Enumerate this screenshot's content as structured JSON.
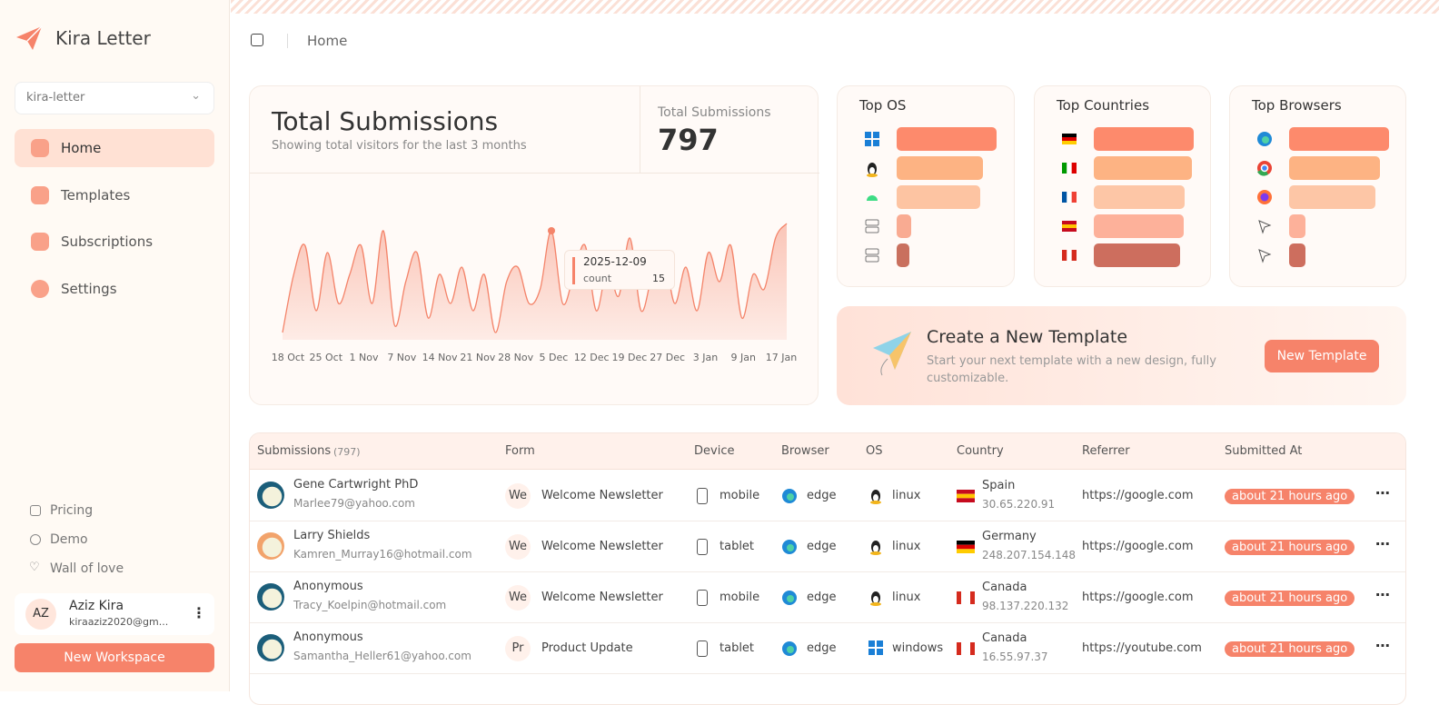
{
  "sidebar": {
    "brand": "Kira Letter",
    "workspace": "kira-letter",
    "nav": [
      "Home",
      "Templates",
      "Subscriptions",
      "Settings"
    ],
    "links": [
      "Pricing",
      "Demo",
      "Wall of love"
    ],
    "user": {
      "initials": "AZ",
      "name": "Aziz Kira",
      "email": "kiraaziz2020@gm..."
    },
    "button": "New Workspace"
  },
  "header": {
    "breadcrumb": "Home"
  },
  "submissions_chart": {
    "type": "area",
    "title": "Total Submissions",
    "subtitle": "Showing total visitors for the last 3 months",
    "total_label": "Total Submissions",
    "total": 797,
    "color": "#f4846a",
    "x_labels": [
      "18 Oct",
      "25 Oct",
      "1 Nov",
      "7 Nov",
      "14 Nov",
      "21 Nov",
      "28 Nov",
      "5 Dec",
      "12 Dec",
      "19 Dec",
      "27 Dec",
      "3 Jan",
      "9 Jan",
      "17 Jan"
    ],
    "values": [
      1,
      9,
      13,
      4,
      12,
      5,
      9,
      13,
      5,
      15,
      2,
      8,
      12,
      3,
      9,
      5,
      10,
      4,
      9,
      1,
      8,
      10,
      5,
      7,
      15,
      5,
      9,
      13,
      4,
      10,
      6,
      14,
      4,
      9,
      12,
      5,
      10,
      4,
      12,
      8,
      13,
      3,
      9,
      7,
      14,
      16
    ],
    "tooltip": {
      "date": "2025-12-09",
      "label": "count"
    }
  },
  "top_os": {
    "title": "Top OS",
    "values": [
      110,
      95,
      92,
      16,
      14
    ],
    "colors": [
      "#fd8a6c",
      "#fdb383",
      "#fdc4a2",
      "#f9ab92",
      "#c9705e"
    ]
  },
  "top_countries": {
    "title": "Top Countries",
    "values": [
      102,
      100,
      93,
      92,
      88
    ],
    "colors": [
      "#fd8a6c",
      "#fdb383",
      "#fdc6a6",
      "#fdb19a",
      "#cd6e5e"
    ]
  },
  "top_browsers": {
    "title": "Top Browsers",
    "values": [
      112,
      102,
      97,
      18,
      18
    ],
    "colors": [
      "#fd8a6c",
      "#fdb383",
      "#fdc6a6",
      "#fdb19a",
      "#cd6e5e"
    ]
  },
  "promo": {
    "title": "Create a New Template",
    "text": "Start your next template with a new design, fully customizable.",
    "button": "New Template"
  },
  "table": {
    "columns": [
      "Submissions",
      "Form",
      "Device",
      "Browser",
      "OS",
      "Country",
      "Referrer",
      "Submitted At"
    ],
    "count": "(797)",
    "rows": [
      [
        "Gene Cartwright PhD",
        "Marlee79@yahoo.com",
        "We",
        "Welcome Newsletter",
        "mobile",
        "edge",
        "linux",
        "Spain",
        "30.65.220.91",
        "https://google.com",
        "about 21 hours ago"
      ],
      [
        "Larry Shields",
        "Kamren_Murray16@hotmail.com",
        "We",
        "Welcome Newsletter",
        "tablet",
        "edge",
        "linux",
        "Germany",
        "248.207.154.148",
        "https://google.com",
        "about 21 hours ago"
      ],
      [
        "Anonymous",
        "Tracy_Koelpin@hotmail.com",
        "We",
        "Welcome Newsletter",
        "mobile",
        "edge",
        "linux",
        "Canada",
        "98.137.220.132",
        "https://google.com",
        "about 21 hours ago"
      ],
      [
        "Anonymous",
        "Samantha_Heller61@yahoo.com",
        "Pr",
        "Product Update",
        "tablet",
        "edge",
        "windows",
        "Canada",
        "16.55.97.37",
        "https://youtube.com",
        "about 21 hours ago"
      ]
    ]
  }
}
